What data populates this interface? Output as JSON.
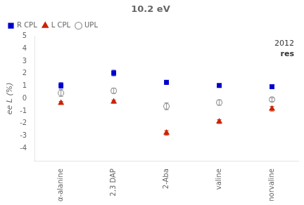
{
  "chart_data": {
    "type": "scatter",
    "title": "10.2 eV",
    "annotations": [
      "2012",
      "res"
    ],
    "y_label": "ee L (%)",
    "categories": [
      "α-alanine",
      "2,3 DAP",
      "2-Aba",
      "valine",
      "norvaline"
    ],
    "series": [
      {
        "name": "R CPL",
        "color": "#0000cc",
        "marker": "square",
        "values": [
          1.05,
          2.05,
          1.3,
          1.05,
          0.95
        ],
        "errors": [
          0.22,
          0.22,
          0.15,
          0.12,
          0.12
        ]
      },
      {
        "name": "L CPL",
        "color": "#cc2200",
        "marker": "triangle",
        "values": [
          -0.35,
          -0.25,
          -2.75,
          -1.85,
          -0.82
        ],
        "errors": [
          0.12,
          0.12,
          0.18,
          0.15,
          0.18
        ]
      },
      {
        "name": "UPL",
        "color": "#999999",
        "marker": "open circle",
        "values": [
          0.45,
          0.62,
          -0.62,
          -0.32,
          -0.08
        ],
        "errors": [
          0.28,
          0.22,
          0.28,
          0.22,
          0.14
        ]
      }
    ],
    "ylim": [
      -5,
      5
    ],
    "yticks": [
      -4,
      -3,
      -2,
      -1,
      0,
      1,
      2,
      3,
      4,
      5
    ],
    "grid": false,
    "legend": "upper left"
  }
}
